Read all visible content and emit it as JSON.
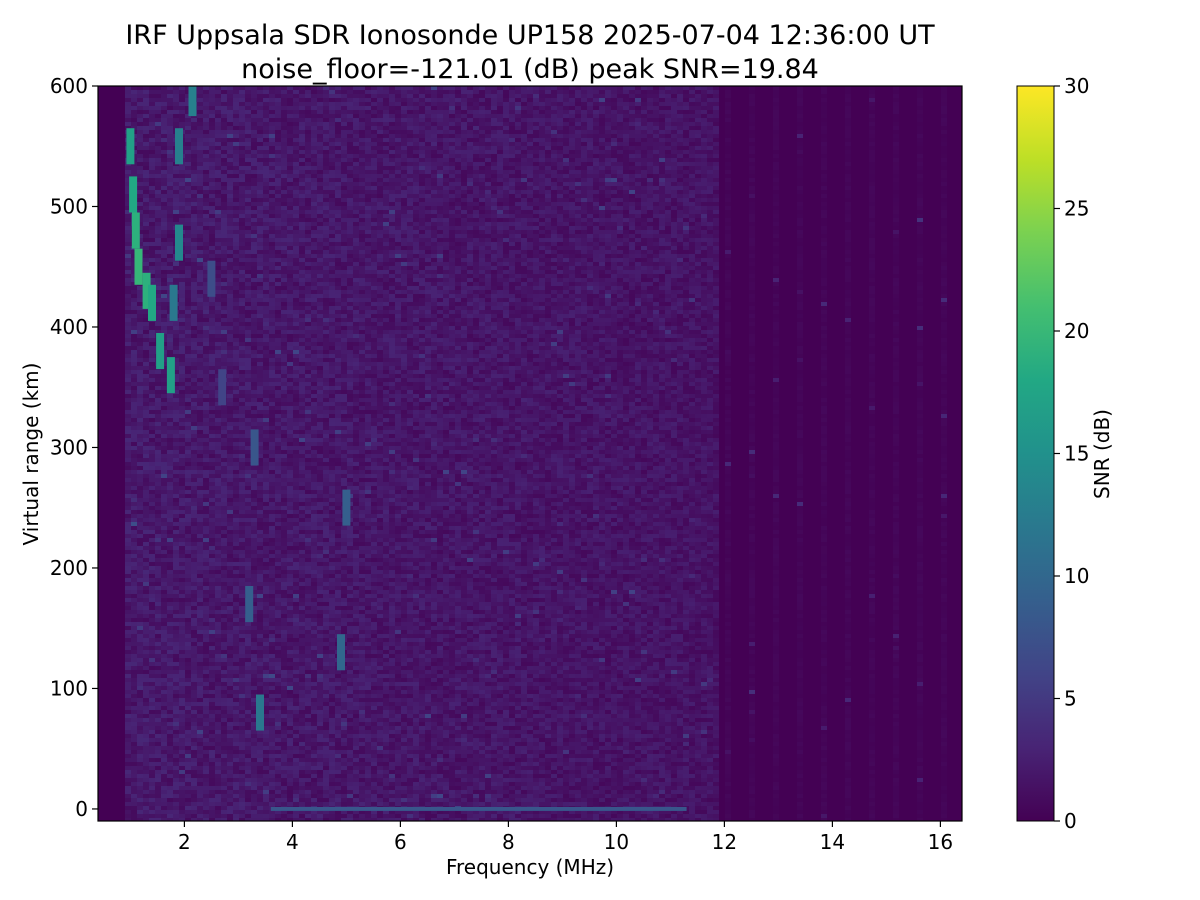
{
  "chart_data": {
    "type": "heatmap",
    "title": "IRF Uppsala SDR Ionosonde UP158 2025-07-04 12:36:00  UT",
    "subtitle": "noise_floor=-121.01 (dB) peak SNR=19.84",
    "xlabel": "Frequency (MHz)",
    "ylabel": "Virtual range (km)",
    "xlim": [
      0.4,
      16.4
    ],
    "ylim": [
      -10,
      600
    ],
    "x_ticks": [
      2,
      4,
      6,
      8,
      10,
      12,
      14,
      16
    ],
    "x_tick_labels": [
      "2",
      "4",
      "6",
      "8",
      "10",
      "12",
      "14",
      "16"
    ],
    "y_ticks": [
      0,
      100,
      200,
      300,
      400,
      500,
      600
    ],
    "y_tick_labels": [
      "0",
      "100",
      "200",
      "300",
      "400",
      "500",
      "600"
    ],
    "colorbar": {
      "label": "SNR (dB)",
      "colormap": "viridis",
      "range": [
        0,
        30
      ],
      "ticks": [
        0,
        5,
        10,
        15,
        20,
        25,
        30
      ],
      "tick_labels": [
        "0",
        "5",
        "10",
        "15",
        "20",
        "25",
        "30"
      ]
    },
    "grid": false,
    "noise_floor_db": -121.01,
    "peak_snr_db": 19.84,
    "data_coverage_mhz": [
      0.9,
      16.3
    ],
    "echo_traces": [
      {
        "freq_mhz": 1.0,
        "range_km": 550,
        "snr_db": 17
      },
      {
        "freq_mhz": 1.05,
        "range_km": 510,
        "snr_db": 18
      },
      {
        "freq_mhz": 1.1,
        "range_km": 480,
        "snr_db": 19
      },
      {
        "freq_mhz": 1.15,
        "range_km": 450,
        "snr_db": 19.8
      },
      {
        "freq_mhz": 1.3,
        "range_km": 430,
        "snr_db": 19
      },
      {
        "freq_mhz": 1.4,
        "range_km": 420,
        "snr_db": 18
      },
      {
        "freq_mhz": 1.55,
        "range_km": 380,
        "snr_db": 17
      },
      {
        "freq_mhz": 1.75,
        "range_km": 360,
        "snr_db": 17
      },
      {
        "freq_mhz": 1.8,
        "range_km": 420,
        "snr_db": 12
      },
      {
        "freq_mhz": 1.9,
        "range_km": 470,
        "snr_db": 14
      },
      {
        "freq_mhz": 1.9,
        "range_km": 550,
        "snr_db": 13
      },
      {
        "freq_mhz": 2.15,
        "range_km": 590,
        "snr_db": 13
      },
      {
        "freq_mhz": 2.5,
        "range_km": 440,
        "snr_db": 7
      },
      {
        "freq_mhz": 2.7,
        "range_km": 350,
        "snr_db": 6
      },
      {
        "freq_mhz": 3.2,
        "range_km": 170,
        "snr_db": 9
      },
      {
        "freq_mhz": 3.3,
        "range_km": 300,
        "snr_db": 8
      },
      {
        "freq_mhz": 3.4,
        "range_km": 80,
        "snr_db": 12
      },
      {
        "freq_mhz": 4.9,
        "range_km": 130,
        "snr_db": 10
      },
      {
        "freq_mhz": 5.0,
        "range_km": 250,
        "snr_db": 9
      }
    ],
    "ground_echo": {
      "range_km": 0,
      "freq_range_mhz": [
        3.6,
        11.3
      ],
      "snr_db": 8
    }
  }
}
